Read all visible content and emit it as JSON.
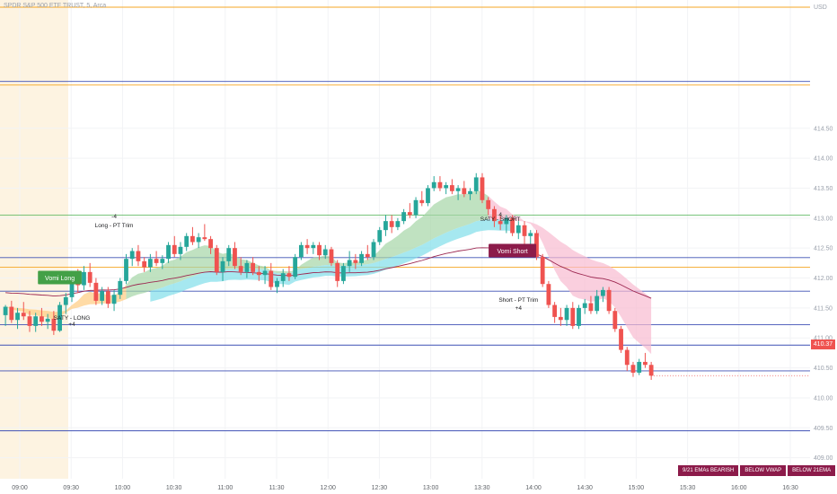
{
  "header": {
    "title": "SPDR S&P 500 ETF TRUST, 5, Arca"
  },
  "axis": {
    "currency": "USD"
  },
  "last_price": "410.37",
  "status_badges": [
    "9/21 EMAs BEARISH",
    "BELOW VWAP",
    "BELOW 21EMA"
  ],
  "colors": {
    "up": "#26a69a",
    "down": "#ef5350",
    "premarket": "#fdf3e1",
    "bull_cloud": "#a5d6a7",
    "bear_cloud": "#f8bbd0",
    "cyan_cloud": "#80deea",
    "orange_cloud": "#ffcc80",
    "vwap": "#9c2750",
    "ema21": "#4caf50"
  },
  "chart_data": {
    "type": "candlestick",
    "title": "SPDR S&P 500 ETF TRUST, 5, Arca",
    "xlabel": "",
    "ylabel": "",
    "ylim": [
      408.65,
      416.55
    ],
    "x_ticks": [
      "09:00",
      "09:30",
      "10:00",
      "10:30",
      "11:00",
      "11:30",
      "12:00",
      "12:30",
      "13:00",
      "13:30",
      "14:00",
      "14:30",
      "15:00",
      "15:30",
      "16:00",
      "16:30"
    ],
    "y_ticks": [
      "409.00",
      "409.50",
      "410.00",
      "410.50",
      "411.00",
      "411.50",
      "412.00",
      "412.50",
      "413.00",
      "413.50",
      "414.00",
      "414.50"
    ],
    "horizontal_levels": [
      {
        "price": 416.52,
        "color": "#f5a623"
      },
      {
        "price": 415.28,
        "color": "#3f51b5"
      },
      {
        "price": 415.22,
        "color": "#f5a623"
      },
      {
        "price": 413.05,
        "color": "#66bb6a"
      },
      {
        "price": 412.34,
        "color": "#3f51b5"
      },
      {
        "price": 412.18,
        "color": "#f5a623"
      },
      {
        "price": 411.78,
        "color": "#3f51b5"
      },
      {
        "price": 411.22,
        "color": "#3f51b5"
      },
      {
        "price": 410.88,
        "color": "#3f51b5"
      },
      {
        "price": 410.45,
        "color": "#3f51b5"
      },
      {
        "price": 409.45,
        "color": "#3f51b5"
      }
    ],
    "candles": [
      [
        411.38,
        411.55,
        411.2,
        411.52
      ],
      [
        411.52,
        411.62,
        411.25,
        411.3
      ],
      [
        411.3,
        411.5,
        411.15,
        411.42
      ],
      [
        411.42,
        411.6,
        411.3,
        411.36
      ],
      [
        411.36,
        411.45,
        411.1,
        411.2
      ],
      [
        411.2,
        411.42,
        411.1,
        411.36
      ],
      [
        411.36,
        411.5,
        411.2,
        411.27
      ],
      [
        411.27,
        411.4,
        411.15,
        411.32
      ],
      [
        411.32,
        411.45,
        411.05,
        411.12
      ],
      [
        411.12,
        411.6,
        411.1,
        411.55
      ],
      [
        411.55,
        411.75,
        411.4,
        411.68
      ],
      [
        411.68,
        412.05,
        411.6,
        411.98
      ],
      [
        411.98,
        412.15,
        411.75,
        411.88
      ],
      [
        411.88,
        412.2,
        411.8,
        412.1
      ],
      [
        412.1,
        412.25,
        411.85,
        411.92
      ],
      [
        411.92,
        412.0,
        411.55,
        411.62
      ],
      [
        411.62,
        411.85,
        411.55,
        411.78
      ],
      [
        411.78,
        411.85,
        411.5,
        411.57
      ],
      [
        411.57,
        411.8,
        411.45,
        411.72
      ],
      [
        411.72,
        412.0,
        411.65,
        411.95
      ],
      [
        411.95,
        412.4,
        411.9,
        412.32
      ],
      [
        412.32,
        412.5,
        412.2,
        412.45
      ],
      [
        412.45,
        412.55,
        412.2,
        412.28
      ],
      [
        412.28,
        412.35,
        412.1,
        412.18
      ],
      [
        412.18,
        412.4,
        412.1,
        412.32
      ],
      [
        412.32,
        412.45,
        412.2,
        412.25
      ],
      [
        412.25,
        412.38,
        412.15,
        412.32
      ],
      [
        412.32,
        412.6,
        412.25,
        412.55
      ],
      [
        412.55,
        412.7,
        412.35,
        412.4
      ],
      [
        412.4,
        412.6,
        412.3,
        412.52
      ],
      [
        412.52,
        412.75,
        412.45,
        412.7
      ],
      [
        412.7,
        412.85,
        412.55,
        412.6
      ],
      [
        412.6,
        412.75,
        412.5,
        412.68
      ],
      [
        412.68,
        412.9,
        412.62,
        412.65
      ],
      [
        412.65,
        412.7,
        412.4,
        412.5
      ],
      [
        412.5,
        412.55,
        412.05,
        412.1
      ],
      [
        412.1,
        412.35,
        411.95,
        412.28
      ],
      [
        412.28,
        412.55,
        412.2,
        412.5
      ],
      [
        412.5,
        412.6,
        412.15,
        412.2
      ],
      [
        412.2,
        412.35,
        412.05,
        412.1
      ],
      [
        412.1,
        412.3,
        412.0,
        412.25
      ],
      [
        412.25,
        412.35,
        412.05,
        412.1
      ],
      [
        412.1,
        412.2,
        411.95,
        412.05
      ],
      [
        412.05,
        412.2,
        411.9,
        412.12
      ],
      [
        412.12,
        412.25,
        411.8,
        411.85
      ],
      [
        411.85,
        412.0,
        411.75,
        411.95
      ],
      [
        411.95,
        412.15,
        411.85,
        412.08
      ],
      [
        412.08,
        412.2,
        411.95,
        412.02
      ],
      [
        412.02,
        412.4,
        411.98,
        412.35
      ],
      [
        412.35,
        412.6,
        412.3,
        412.55
      ],
      [
        412.55,
        412.65,
        412.4,
        412.5
      ],
      [
        412.5,
        412.6,
        412.4,
        412.55
      ],
      [
        412.55,
        412.6,
        412.3,
        412.38
      ],
      [
        412.38,
        412.55,
        412.32,
        412.48
      ],
      [
        412.48,
        412.52,
        412.2,
        412.25
      ],
      [
        412.25,
        412.3,
        411.85,
        411.95
      ],
      [
        411.95,
        412.25,
        411.9,
        412.2
      ],
      [
        412.2,
        412.45,
        412.1,
        412.3
      ],
      [
        412.3,
        412.4,
        412.15,
        412.25
      ],
      [
        412.25,
        412.45,
        412.2,
        412.4
      ],
      [
        412.4,
        412.55,
        412.3,
        412.35
      ],
      [
        412.35,
        412.65,
        412.3,
        412.6
      ],
      [
        412.6,
        412.85,
        412.55,
        412.8
      ],
      [
        412.8,
        413.05,
        412.7,
        412.95
      ],
      [
        412.95,
        413.05,
        412.75,
        412.85
      ],
      [
        412.85,
        413.0,
        412.8,
        412.95
      ],
      [
        412.95,
        413.15,
        412.9,
        413.1
      ],
      [
        413.1,
        413.25,
        413.0,
        413.05
      ],
      [
        413.05,
        413.35,
        413.0,
        413.3
      ],
      [
        413.3,
        413.45,
        413.2,
        413.25
      ],
      [
        413.25,
        413.55,
        413.2,
        413.5
      ],
      [
        413.5,
        413.7,
        413.45,
        413.6
      ],
      [
        413.6,
        413.7,
        413.45,
        413.5
      ],
      [
        413.5,
        413.6,
        413.4,
        413.55
      ],
      [
        413.55,
        413.65,
        413.4,
        413.45
      ],
      [
        413.45,
        413.55,
        413.3,
        413.5
      ],
      [
        413.5,
        413.62,
        413.35,
        413.4
      ],
      [
        413.4,
        413.5,
        413.3,
        413.45
      ],
      [
        413.45,
        413.75,
        413.4,
        413.68
      ],
      [
        413.68,
        413.75,
        413.25,
        413.3
      ],
      [
        413.3,
        413.35,
        413.05,
        413.15
      ],
      [
        413.15,
        413.2,
        412.85,
        412.95
      ],
      [
        412.95,
        413.05,
        412.8,
        412.9
      ],
      [
        412.9,
        413.05,
        412.75,
        413.0
      ],
      [
        413.0,
        413.05,
        412.7,
        412.75
      ],
      [
        412.75,
        412.95,
        412.65,
        412.88
      ],
      [
        412.88,
        412.95,
        412.55,
        412.7
      ],
      [
        412.7,
        412.8,
        412.5,
        412.75
      ],
      [
        412.75,
        412.8,
        412.3,
        412.35
      ],
      [
        412.35,
        412.4,
        411.85,
        411.9
      ],
      [
        411.9,
        411.95,
        411.5,
        411.55
      ],
      [
        411.55,
        411.6,
        411.25,
        411.35
      ],
      [
        411.35,
        411.5,
        411.2,
        411.3
      ],
      [
        411.3,
        411.55,
        411.2,
        411.5
      ],
      [
        411.5,
        411.6,
        411.15,
        411.2
      ],
      [
        411.2,
        411.55,
        411.15,
        411.5
      ],
      [
        411.5,
        411.65,
        411.4,
        411.58
      ],
      [
        411.58,
        411.7,
        411.4,
        411.45
      ],
      [
        411.45,
        411.8,
        411.4,
        411.7
      ],
      [
        411.7,
        411.85,
        411.6,
        411.8
      ],
      [
        411.8,
        411.85,
        411.4,
        411.45
      ],
      [
        411.45,
        411.5,
        411.1,
        411.15
      ],
      [
        411.15,
        411.2,
        410.75,
        410.8
      ],
      [
        410.8,
        410.85,
        410.45,
        410.55
      ],
      [
        410.55,
        410.6,
        410.35,
        410.42
      ],
      [
        410.42,
        410.65,
        410.38,
        410.6
      ],
      [
        410.6,
        410.75,
        410.5,
        410.55
      ],
      [
        410.55,
        410.6,
        410.3,
        410.37
      ]
    ],
    "signals": [
      {
        "label": "Vomi Long",
        "price": 412.0,
        "index": 9
      },
      {
        "label": "SATY - LONG",
        "price": 411.3,
        "index": 11
      },
      {
        "label": "+4",
        "price": 411.2,
        "index": 11
      },
      {
        "label": "-4",
        "price": 413.0,
        "index": 18
      },
      {
        "label": "Long - PT Trim",
        "price": 412.85,
        "index": 18
      },
      {
        "label": "4",
        "price": 413.03,
        "index": 82
      },
      {
        "label": "SATY - SHORT",
        "price": 412.95,
        "index": 82
      },
      {
        "label": "Vomi Short",
        "price": 412.45,
        "index": 84
      },
      {
        "label": "Short - PT Trim",
        "price": 411.6,
        "index": 85
      },
      {
        "label": "+4",
        "price": 411.47,
        "index": 85
      }
    ]
  }
}
